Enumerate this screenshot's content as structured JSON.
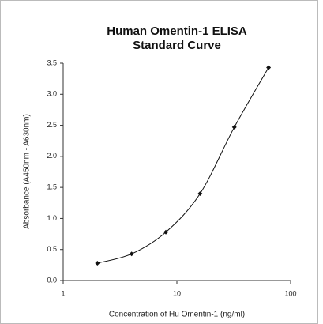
{
  "chart_data": {
    "type": "line",
    "title": "Human Omentin-1 ELISA",
    "subtitle": "Standard Curve",
    "x_label": "Concentration of Hu Omentin-1 (ng/ml)",
    "y_label": "Absorbance (A450nm - A630nm)",
    "x_scale": "log",
    "x": [
      2,
      4,
      8,
      16,
      32,
      64
    ],
    "series": [
      {
        "color": "#111111",
        "values": [
          0.28,
          0.43,
          0.78,
          1.4,
          2.47,
          3.43
        ]
      }
    ],
    "xlim": [
      1,
      100
    ],
    "xticks": [
      1,
      10,
      100
    ],
    "ylim": [
      0,
      3.5
    ],
    "yticks": [
      {
        "value": 0,
        "label": "0.0"
      },
      0.5,
      {
        "value": 1,
        "label": "1.0"
      },
      1.5,
      {
        "value": 2,
        "label": "2.0"
      },
      2.5,
      {
        "value": 3,
        "label": "3.0"
      },
      3.5
    ]
  }
}
